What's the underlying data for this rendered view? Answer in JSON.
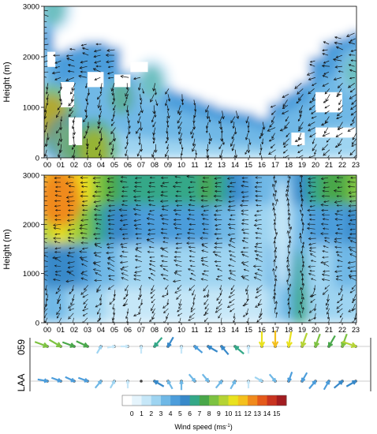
{
  "chart_data": [
    {
      "type": "heatmap",
      "panel": "top",
      "ylabel": "Height (m)",
      "x_ticks": [
        "00",
        "01",
        "02",
        "03",
        "04",
        "05",
        "06",
        "07",
        "08",
        "09",
        "10",
        "11",
        "12",
        "13",
        "14",
        "15",
        "16",
        "17",
        "18",
        "19",
        "20",
        "21",
        "22",
        "23"
      ],
      "y_ticks": [
        0,
        1000,
        2000,
        3000
      ],
      "ylim": [
        0,
        3000
      ],
      "xlim": [
        0,
        23
      ],
      "data_top_height_by_hour": [
        3000,
        2100,
        2200,
        2300,
        2300,
        2200,
        1700,
        1600,
        1500,
        1400,
        1300,
        1200,
        1100,
        1000,
        950,
        900,
        800,
        1100,
        1300,
        1500,
        2000,
        2300,
        2400,
        2500
      ],
      "hot_spots": [
        {
          "hour": 0.3,
          "height": 800,
          "speed": 12
        },
        {
          "hour": 1.5,
          "height": 300,
          "speed": 9
        },
        {
          "hour": 3.5,
          "height": 150,
          "speed": 11
        },
        {
          "hour": 5.5,
          "height": 1200,
          "speed": 7
        },
        {
          "hour": 7.8,
          "height": 1500,
          "speed": 6
        },
        {
          "hour": 0.5,
          "height": 2950,
          "speed": 6
        },
        {
          "hour": 23.0,
          "height": 1700,
          "speed": 6
        }
      ]
    },
    {
      "type": "heatmap",
      "panel": "middle",
      "ylabel": "Height (m)",
      "x_ticks": [
        "00",
        "01",
        "02",
        "03",
        "04",
        "05",
        "06",
        "07",
        "08",
        "09",
        "10",
        "11",
        "12",
        "13",
        "14",
        "15",
        "16",
        "17",
        "18",
        "19",
        "20",
        "21",
        "22",
        "23"
      ],
      "y_ticks": [
        0,
        1000,
        2000,
        3000
      ],
      "ylim": [
        0,
        3000
      ],
      "xlim": [
        0,
        23
      ],
      "speed_profile_by_hour": [
        [
          3,
          5,
          9,
          11
        ],
        [
          3,
          5,
          10,
          12
        ],
        [
          2,
          5,
          9,
          11
        ],
        [
          2,
          4,
          8,
          10
        ],
        [
          2,
          3,
          6,
          8
        ],
        [
          1,
          3,
          5,
          7
        ],
        [
          1,
          2,
          5,
          6
        ],
        [
          1,
          2,
          4,
          6
        ],
        [
          1,
          2,
          4,
          6
        ],
        [
          1,
          2,
          4,
          6
        ],
        [
          1,
          2,
          4,
          6
        ],
        [
          1,
          2,
          4,
          6
        ],
        [
          1,
          2,
          4,
          7
        ],
        [
          1,
          2,
          3,
          6
        ],
        [
          1,
          2,
          3,
          5
        ],
        [
          1,
          2,
          2,
          4
        ],
        [
          1,
          2,
          2,
          3
        ],
        [
          2,
          3,
          2,
          3
        ],
        [
          3,
          3,
          2,
          3
        ],
        [
          6,
          3,
          3,
          5
        ],
        [
          2,
          2,
          4,
          6
        ],
        [
          2,
          2,
          4,
          7
        ],
        [
          2,
          3,
          4,
          7
        ],
        [
          2,
          3,
          5,
          8
        ]
      ]
    },
    {
      "type": "scatter",
      "panel": "stations",
      "rows": [
        "059",
        "LAA"
      ],
      "hours": [
        0,
        23
      ],
      "059": {
        "speeds": [
          8,
          8,
          7,
          7,
          2,
          1,
          1,
          1,
          6,
          5,
          1,
          4,
          5,
          5,
          6,
          1,
          10,
          11,
          10,
          9,
          8,
          7,
          8,
          9
        ],
        "directions_deg": [
          110,
          120,
          110,
          115,
          30,
          80,
          90,
          0,
          220,
          210,
          0,
          310,
          300,
          320,
          310,
          0,
          180,
          180,
          190,
          200,
          200,
          210,
          200,
          110
        ]
      },
      "LAA": {
        "speeds": [
          4,
          4,
          4,
          4,
          3,
          2,
          1,
          0,
          5,
          3,
          3,
          3,
          3,
          3,
          3,
          1,
          2,
          3,
          4,
          4,
          4,
          4,
          5,
          5
        ],
        "directions_deg": [
          100,
          110,
          115,
          110,
          40,
          30,
          0,
          0,
          300,
          330,
          0,
          140,
          140,
          40,
          30,
          0,
          120,
          140,
          200,
          210,
          40,
          30,
          50,
          60
        ]
      },
      "arrow_color_speed": "Wind speed"
    }
  ],
  "colorbar": {
    "ticks": [
      "0",
      "1",
      "2",
      "3",
      "4",
      "5",
      "6",
      "7",
      "8",
      "9",
      "10",
      "11",
      "12",
      "13",
      "14",
      "15"
    ],
    "label": "Wind speed (ms",
    "label_sup": "-1",
    "label_end": ")",
    "colors": [
      "#ffffff",
      "#e5f4fc",
      "#c6e7f8",
      "#9ed4f1",
      "#6fb8e6",
      "#4c9ddb",
      "#3889c9",
      "#34a888",
      "#49a74a",
      "#7dc241",
      "#b5d334",
      "#e9e21f",
      "#f4c01d",
      "#f08a1d",
      "#e45a1b",
      "#c83420",
      "#a21c20"
    ]
  }
}
